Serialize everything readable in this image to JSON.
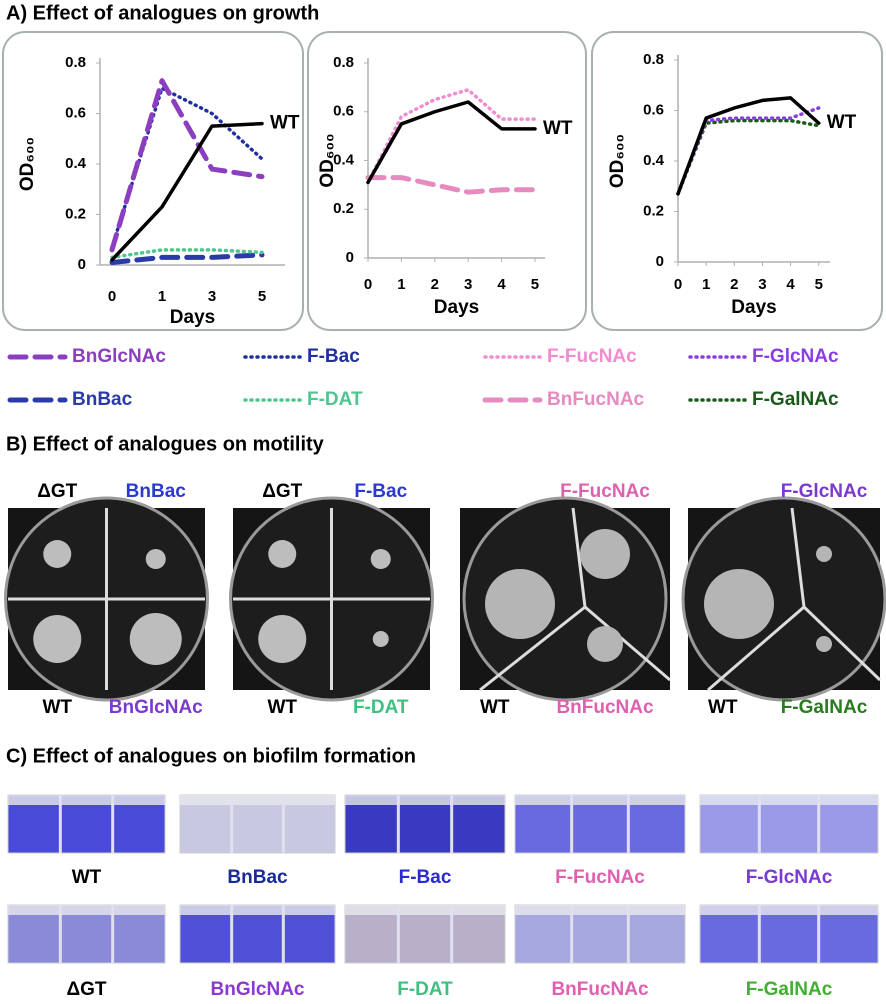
{
  "figure": {
    "growth_title": "A) Effect of analogues on growth",
    "motility_title": "B) Effect of analogues on motility",
    "biofilm_title": "C) Effect of analogues on biofilm formation"
  },
  "chart_data": [
    {
      "type": "line",
      "y_label": "OD₆₀₀",
      "x_label": "Days",
      "categories": [
        "0",
        "1",
        "3",
        "5"
      ],
      "ylim": [
        0,
        0.8
      ],
      "yticks": [
        0,
        0.2,
        0.4,
        0.6,
        0.8
      ],
      "series": [
        {
          "name": "WT",
          "color": "#000000",
          "style": "solid",
          "values": [
            0.02,
            0.23,
            0.55,
            0.56
          ]
        },
        {
          "name": "BnGlcNAc",
          "color": "#8b3fc0",
          "style": "dashed",
          "values": [
            0.06,
            0.73,
            0.38,
            0.35
          ]
        },
        {
          "name": "F-Bac",
          "color": "#1f2fa0",
          "style": "dotted",
          "values": [
            0.07,
            0.7,
            0.6,
            0.42
          ]
        },
        {
          "name": "F-DAT",
          "color": "#4fc58f",
          "style": "dotted",
          "values": [
            0.03,
            0.06,
            0.06,
            0.05
          ]
        },
        {
          "name": "BnBac",
          "color": "#2a3aa8",
          "style": "dashed",
          "values": [
            0.01,
            0.03,
            0.03,
            0.04
          ]
        }
      ]
    },
    {
      "type": "line",
      "y_label": "OD₆₀₀",
      "x_label": "Days",
      "x": [
        0,
        1,
        2,
        3,
        4,
        5
      ],
      "xlim": [
        0,
        5.3
      ],
      "xticks": [
        0,
        1,
        2,
        3,
        4,
        5
      ],
      "ylim": [
        0,
        0.8
      ],
      "yticks": [
        0,
        0.2,
        0.4,
        0.6,
        0.8
      ],
      "series": [
        {
          "name": "WT",
          "color": "#000000",
          "style": "solid",
          "values": [
            0.31,
            0.55,
            0.6,
            0.64,
            0.53,
            0.53
          ]
        },
        {
          "name": "F-FucNAc",
          "color": "#f08ccf",
          "style": "dotted",
          "values": [
            0.31,
            0.58,
            0.65,
            0.69,
            0.57,
            0.57
          ]
        },
        {
          "name": "BnFucNAc",
          "color": "#e58bc0",
          "style": "dashed",
          "values": [
            0.33,
            0.33,
            0.3,
            0.27,
            0.28,
            0.28
          ]
        }
      ]
    },
    {
      "type": "line",
      "y_label": "OD₆₀₀",
      "x_label": "Days",
      "x": [
        0,
        1,
        2,
        3,
        4,
        5
      ],
      "xlim": [
        0,
        5.4
      ],
      "xticks": [
        0,
        1,
        2,
        3,
        4,
        5
      ],
      "ylim": [
        0,
        0.8
      ],
      "yticks": [
        0,
        0.2,
        0.4,
        0.6,
        0.8
      ],
      "series": [
        {
          "name": "WT",
          "color": "#000000",
          "style": "solid",
          "values": [
            0.27,
            0.57,
            0.61,
            0.64,
            0.65,
            0.55
          ]
        },
        {
          "name": "F-GlcNAc",
          "color": "#8a3de0",
          "style": "dotted",
          "values": [
            0.27,
            0.56,
            0.57,
            0.57,
            0.57,
            0.61
          ]
        },
        {
          "name": "F-GalNAc",
          "color": "#1a5a1a",
          "style": "dotted",
          "values": [
            0.27,
            0.55,
            0.56,
            0.56,
            0.56,
            0.54
          ]
        }
      ]
    }
  ],
  "motility": {
    "plates": [
      {
        "labels": [
          "ΔGT",
          "BnBac",
          "WT",
          "BnGlcNAc"
        ]
      },
      {
        "labels": [
          "ΔGT",
          "F-Bac",
          "WT",
          "F-DAT"
        ]
      },
      {
        "labels": [
          "F-FucNAc",
          "WT",
          "BnFucNAc"
        ]
      },
      {
        "labels": [
          "F-GlcNAc",
          "WT",
          "F-GalNAc"
        ]
      }
    ]
  },
  "biofilm": {
    "wells": [
      "WT",
      "BnBac",
      "F-Bac",
      "F-FucNAc",
      "F-GlcNAc",
      "ΔGT",
      "BnGlcNAc",
      "F-DAT",
      "BnFucNAc",
      "F-GalNAc"
    ]
  }
}
